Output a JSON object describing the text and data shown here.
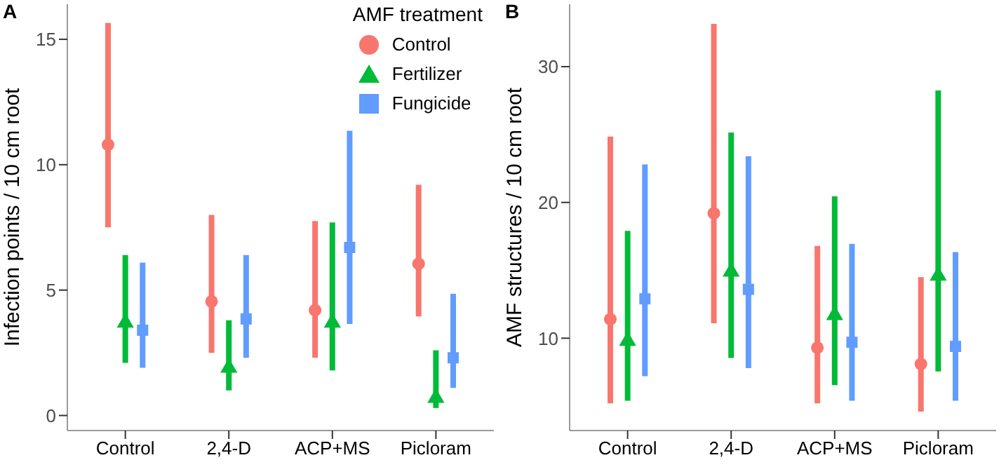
{
  "chart_data": [
    {
      "type": "scatter",
      "annotations": [
        "A"
      ],
      "ylabel": "Infection points / 10 cm root",
      "legend_title": "AMF treatment",
      "legend": "top right",
      "grid": false,
      "categories": [
        "Control",
        "2,4-D",
        "ACP+MS",
        "Picloram"
      ],
      "ylim": [
        -0.6,
        16.4
      ],
      "yticks": [
        0,
        5,
        10,
        15
      ],
      "series": [
        {
          "name": "Control",
          "color": "#f8766d",
          "marker": "circle",
          "values": [
            10.8,
            4.55,
            4.2,
            6.05
          ],
          "errors": [
            [
              7.5,
              15.65
            ],
            [
              2.5,
              8.0
            ],
            [
              2.3,
              7.75
            ],
            [
              3.95,
              9.2
            ]
          ]
        },
        {
          "name": "Fertilizer",
          "color": "#00ba38",
          "marker": "triangle",
          "values": [
            3.7,
            1.9,
            3.7,
            0.7
          ],
          "errors": [
            [
              2.1,
              6.4
            ],
            [
              1.0,
              3.8
            ],
            [
              1.8,
              7.7
            ],
            [
              0.3,
              2.6
            ]
          ]
        },
        {
          "name": "Fungicide",
          "color": "#619cff",
          "marker": "square",
          "values": [
            3.4,
            3.85,
            6.7,
            2.3
          ],
          "errors": [
            [
              1.9,
              6.1
            ],
            [
              2.3,
              6.4
            ],
            [
              3.65,
              11.35
            ],
            [
              1.1,
              4.85
            ]
          ]
        }
      ]
    },
    {
      "type": "scatter",
      "annotations": [
        "B"
      ],
      "ylabel": "AMF structures / 10 cm root",
      "grid": false,
      "categories": [
        "Control",
        "2,4-D",
        "ACP+MS",
        "Picloram"
      ],
      "ylim": [
        3.2,
        34.6
      ],
      "yticks": [
        10,
        20,
        30
      ],
      "series": [
        {
          "color": "#f8766d",
          "marker": "circle",
          "values": [
            11.4,
            19.2,
            9.3,
            8.1
          ],
          "errors": [
            [
              5.2,
              24.85
            ],
            [
              11.1,
              33.15
            ],
            [
              5.2,
              16.8
            ],
            [
              4.6,
              14.5
            ]
          ]
        },
        {
          "color": "#00ba38",
          "marker": "triangle",
          "values": [
            9.8,
            14.9,
            11.7,
            14.6
          ],
          "errors": [
            [
              5.4,
              17.9
            ],
            [
              8.55,
              25.15
            ],
            [
              6.55,
              20.45
            ],
            [
              7.55,
              28.25
            ]
          ]
        },
        {
          "color": "#619cff",
          "marker": "square",
          "values": [
            12.9,
            13.6,
            9.7,
            9.4
          ],
          "errors": [
            [
              7.2,
              22.8
            ],
            [
              7.8,
              23.4
            ],
            [
              5.4,
              16.95
            ],
            [
              5.4,
              16.35
            ]
          ]
        }
      ]
    }
  ]
}
